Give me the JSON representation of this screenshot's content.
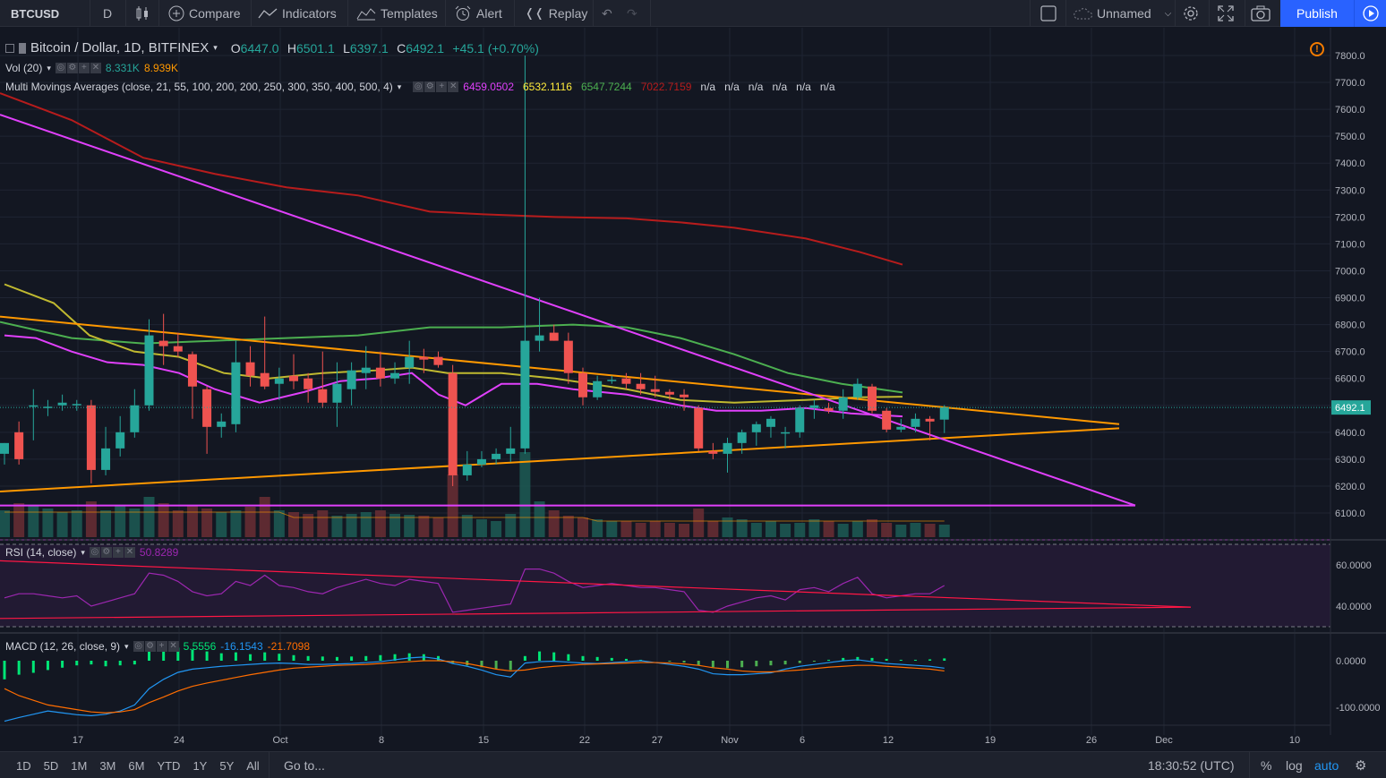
{
  "toolbar": {
    "symbol": "BTCUSD",
    "interval": "D",
    "compare": "Compare",
    "indicators": "Indicators",
    "templates": "Templates",
    "alert": "Alert",
    "replay": "Replay",
    "layout_name": "Unnamed",
    "publish": "Publish"
  },
  "legend": {
    "title": "Bitcoin / Dollar, 1D, BITFINEX",
    "o_label": "O",
    "o": "6447.0",
    "h_label": "H",
    "h": "6501.1",
    "l_label": "L",
    "l": "6397.1",
    "c_label": "C",
    "c": "6492.1",
    "change": "+45.1 (+0.70%)",
    "vol_label": "Vol (20)",
    "vol1": "8.331K",
    "vol2": "8.939K",
    "mma_label": "Multi Movings Averages (close, 21, 55, 100, 200, 200, 250, 300, 350, 400, 500, 4)",
    "mma_values": [
      "6459.0502",
      "6532.1116",
      "6547.7244",
      "7022.7159",
      "n/a",
      "n/a",
      "n/a",
      "n/a",
      "n/a",
      "n/a"
    ],
    "mma_colors": [
      "#e040fb",
      "#ffeb3b",
      "#4caf50",
      "#b71c1c",
      "#d1d4dc",
      "#d1d4dc",
      "#d1d4dc",
      "#d1d4dc",
      "#d1d4dc",
      "#d1d4dc"
    ],
    "rsi_label": "RSI (14, close)",
    "rsi_value": "50.8289",
    "macd_label": "MACD (12, 26, close, 9)",
    "macd_v1": "5.5556",
    "macd_v2": "-16.1543",
    "macd_v3": "-21.7098"
  },
  "price_axis": {
    "labels": [
      "7800.0",
      "7700.0",
      "7600.0",
      "7500.0",
      "7400.0",
      "7300.0",
      "7200.0",
      "7100.0",
      "7000.0",
      "6900.0",
      "6800.0",
      "6700.0",
      "6600.0",
      "6500.0",
      "6400.0",
      "6300.0",
      "6200.0",
      "6100.0"
    ],
    "current": "6492.1",
    "rsi_labels": [
      "60.0000",
      "40.0000"
    ],
    "macd_labels": [
      "0.0000",
      "-100.0000"
    ]
  },
  "time_axis": [
    "17",
    "24",
    "Oct",
    "8",
    "15",
    "22",
    "27",
    "Nov",
    "6",
    "12",
    "19",
    "26",
    "Dec",
    "10"
  ],
  "bottombar": {
    "ranges": [
      "1D",
      "5D",
      "1M",
      "3M",
      "6M",
      "YTD",
      "1Y",
      "5Y",
      "All"
    ],
    "goto": "Go to...",
    "clock": "18:30:52 (UTC)",
    "percent": "%",
    "log": "log",
    "auto": "auto"
  },
  "colors": {
    "up": "#26a69a",
    "down": "#ef5350",
    "ma21": "#e040fb",
    "ma55": "#c0b930",
    "ma100": "#4caf50",
    "ma200": "#b71c1c",
    "trend_orange": "#ff9800",
    "trend_magenta": "#e040fb",
    "rsi": "#9c27b0",
    "macd": "#2196f3",
    "signal": "#ff6d00"
  },
  "chart_data": {
    "type": "candlestick",
    "symbol": "Bitcoin / Dollar, 1D, BITFINEX",
    "candles_ohlc": [
      [
        6320,
        6360,
        6280,
        6360
      ],
      [
        6400,
        6440,
        6280,
        6300
      ],
      [
        6500,
        6560,
        6370,
        6500
      ],
      [
        6490,
        6520,
        6460,
        6495
      ],
      [
        6500,
        6540,
        6480,
        6510
      ],
      [
        6500,
        6520,
        6480,
        6505
      ],
      [
        6500,
        6520,
        6210,
        6260
      ],
      [
        6260,
        6420,
        6240,
        6340
      ],
      [
        6340,
        6460,
        6310,
        6400
      ],
      [
        6400,
        6560,
        6380,
        6500
      ],
      [
        6500,
        6820,
        6480,
        6760
      ],
      [
        6740,
        6840,
        6650,
        6720
      ],
      [
        6720,
        6770,
        6680,
        6700
      ],
      [
        6690,
        6700,
        6450,
        6570
      ],
      [
        6560,
        6570,
        6320,
        6420
      ],
      [
        6420,
        6470,
        6380,
        6440
      ],
      [
        6430,
        6740,
        6400,
        6660
      ],
      [
        6660,
        6720,
        6570,
        6610
      ],
      [
        6620,
        6830,
        6560,
        6570
      ],
      [
        6580,
        6640,
        6520,
        6600
      ],
      [
        6610,
        6690,
        6560,
        6590
      ],
      [
        6600,
        6620,
        6510,
        6560
      ],
      [
        6560,
        6700,
        6490,
        6510
      ],
      [
        6510,
        6660,
        6420,
        6580
      ],
      [
        6560,
        6660,
        6500,
        6630
      ],
      [
        6620,
        6720,
        6560,
        6640
      ],
      [
        6640,
        6700,
        6570,
        6600
      ],
      [
        6600,
        6660,
        6580,
        6620
      ],
      [
        6640,
        6740,
        6580,
        6680
      ],
      [
        6680,
        6710,
        6620,
        6670
      ],
      [
        6680,
        6700,
        6640,
        6650
      ],
      [
        6620,
        6650,
        6200,
        6240
      ],
      [
        6240,
        6330,
        6220,
        6280
      ],
      [
        6280,
        6330,
        6270,
        6300
      ],
      [
        6300,
        6340,
        6280,
        6320
      ],
      [
        6320,
        6420,
        6290,
        6340
      ],
      [
        6340,
        7800,
        6320,
        6740
      ],
      [
        6740,
        6900,
        6700,
        6760
      ],
      [
        6770,
        6800,
        6740,
        6740
      ],
      [
        6740,
        6770,
        6580,
        6620
      ],
      [
        6620,
        6640,
        6500,
        6530
      ],
      [
        6530,
        6610,
        6520,
        6590
      ],
      [
        6590,
        6610,
        6580,
        6595
      ],
      [
        6600,
        6620,
        6560,
        6580
      ],
      [
        6580,
        6620,
        6540,
        6560
      ],
      [
        6560,
        6610,
        6530,
        6550
      ],
      [
        6550,
        6560,
        6520,
        6540
      ],
      [
        6540,
        6560,
        6480,
        6530
      ],
      [
        6490,
        6500,
        6330,
        6340
      ],
      [
        6330,
        6360,
        6300,
        6320
      ],
      [
        6320,
        6380,
        6250,
        6360
      ],
      [
        6360,
        6410,
        6320,
        6400
      ],
      [
        6400,
        6440,
        6350,
        6430
      ],
      [
        6420,
        6460,
        6380,
        6450
      ],
      [
        6400,
        6420,
        6340,
        6400
      ],
      [
        6400,
        6500,
        6380,
        6490
      ],
      [
        6490,
        6520,
        6450,
        6500
      ],
      [
        6490,
        6510,
        6470,
        6480
      ],
      [
        6480,
        6560,
        6450,
        6530
      ],
      [
        6530,
        6600,
        6520,
        6580
      ],
      [
        6570,
        6580,
        6470,
        6480
      ],
      [
        6480,
        6490,
        6400,
        6410
      ],
      [
        6410,
        6450,
        6400,
        6420
      ],
      [
        6420,
        6470,
        6400,
        6450
      ],
      [
        6450,
        6460,
        6370,
        6440
      ],
      [
        6447,
        6501.1,
        6397.1,
        6492.1
      ]
    ],
    "price_range": [
      6000,
      7860
    ],
    "rsi_range": [
      30,
      70
    ],
    "macd_range": [
      -140,
      40
    ]
  }
}
